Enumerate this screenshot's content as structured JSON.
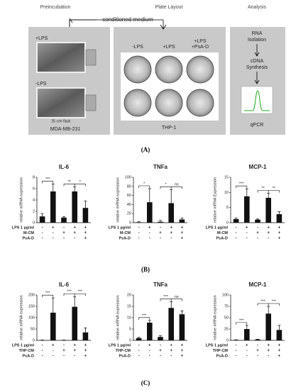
{
  "panel_a": {
    "label": "(A)",
    "headers": [
      "Preincubation",
      "Plate Layout",
      "Analysis"
    ],
    "conditioned_medium": "conditioned medium",
    "flasks": [
      "+LPS",
      "-LPS"
    ],
    "flask_note": "25 cm² flask",
    "cell_line_left": "MDA-MB-231",
    "plate_columns": [
      [
        "-LPS"
      ],
      [
        "+LPS"
      ],
      [
        "+LPS",
        "+PsA-D"
      ]
    ],
    "cell_line_mid": "THP-1",
    "analysis_steps": [
      [
        "RNA",
        "Isolation"
      ],
      [
        "cDNA",
        "Synthesis"
      ],
      [
        "qPCR"
      ]
    ]
  },
  "panel_labels": [
    "(B)",
    "(C)"
  ],
  "chart_data": [
    {
      "type": "bar",
      "title": "IL-6",
      "y_label": "relative mRNA expression",
      "values": [
        1.1,
        5.5,
        0.9,
        5.5,
        2.6
      ],
      "errors": [
        0.5,
        1.3,
        0.2,
        0.8,
        1.2
      ],
      "ylim": [
        0,
        8
      ],
      "yticks": [
        0,
        2,
        4,
        6,
        8
      ],
      "color": "#111111",
      "row_labels": [
        "LPS 1 µg/ml",
        "M-CM",
        "PsA-D"
      ],
      "conditions": [
        [
          "-",
          "+",
          "-",
          "+",
          "+"
        ],
        [
          "-",
          "-",
          "+",
          "+",
          "+"
        ],
        [
          "-",
          "-",
          "-",
          "-",
          "+"
        ]
      ],
      "significance": [
        "***",
        "**",
        "*"
      ]
    },
    {
      "type": "bar",
      "title": "TNFa",
      "y_label": "relative mRNA expression",
      "values": [
        1,
        45,
        2,
        43,
        7
      ],
      "errors": [
        1,
        30,
        3,
        30,
        3
      ],
      "ylim": [
        0,
        100
      ],
      "yticks": [
        0,
        20,
        40,
        60,
        80,
        100
      ],
      "color": "#111111",
      "row_labels": [
        "LPS 1 µg/ml",
        "M-CM",
        "PsA-D"
      ],
      "conditions": [
        [
          "-",
          "+",
          "-",
          "+",
          "+"
        ],
        [
          "-",
          "-",
          "+",
          "+",
          "+"
        ],
        [
          "-",
          "-",
          "-",
          "-",
          "+"
        ]
      ],
      "significance": [
        "*",
        "*",
        "ns"
      ]
    },
    {
      "type": "bar",
      "title": "MCP-1",
      "y_label": "relative mRNA Expression",
      "values": [
        1.2,
        8.7,
        1,
        8.2,
        2.8
      ],
      "errors": [
        0.4,
        2.5,
        0.2,
        1.5,
        0.8
      ],
      "ylim": [
        0,
        15
      ],
      "yticks": [
        0,
        5,
        10,
        15
      ],
      "color": "#111111",
      "row_labels": [
        "LPS 1 µg/ml",
        "M-CM",
        "PsA-D"
      ],
      "conditions": [
        [
          "-",
          "+",
          "-",
          "+",
          "+"
        ],
        [
          "-",
          "-",
          "+",
          "+",
          "+"
        ],
        [
          "-",
          "-",
          "-",
          "-",
          "+"
        ]
      ],
      "significance": [
        "***",
        "**",
        "**"
      ]
    },
    {
      "type": "bar",
      "title": "IL-6",
      "y_label": "relative mRNA expression",
      "values": [
        1,
        122,
        1,
        148,
        35
      ],
      "errors": [
        0.5,
        65,
        0.5,
        45,
        20
      ],
      "ylim": [
        0,
        200
      ],
      "yticks": [
        0,
        50,
        100,
        150,
        200
      ],
      "color": "#111111",
      "row_labels": [
        "LPS 1 µg/ml",
        "THP-CM",
        "PsA-D"
      ],
      "conditions": [
        [
          "-",
          "+",
          "-",
          "+",
          "+"
        ],
        [
          "-",
          "-",
          "+",
          "+",
          "+"
        ],
        [
          "-",
          "-",
          "-",
          "-",
          "+"
        ]
      ],
      "significance": [
        "***",
        "***",
        "***"
      ]
    },
    {
      "type": "bar",
      "title": "TNFa",
      "y_label": "relative mRNA expression",
      "values": [
        1,
        7.8,
        1.5,
        14.3,
        11.5
      ],
      "errors": [
        0.3,
        1,
        0.5,
        2.7,
        1.5
      ],
      "ylim": [
        0,
        20
      ],
      "yticks": [
        0,
        5,
        10,
        15,
        20
      ],
      "color": "#111111",
      "row_labels": [
        "LPS 1 µg/ml",
        "THP-CM",
        "PsA-D"
      ],
      "conditions": [
        [
          "-",
          "+",
          "-",
          "+",
          "+"
        ],
        [
          "-",
          "-",
          "+",
          "+",
          "+"
        ],
        [
          "-",
          "-",
          "-",
          "-",
          "+"
        ]
      ],
      "significance": [
        "***",
        "***",
        "ns"
      ]
    },
    {
      "type": "bar",
      "title": "MCP-1",
      "y_label": "relative mRNA expression",
      "values": [
        1,
        25,
        2,
        59,
        23
      ],
      "errors": [
        0.5,
        8,
        0.5,
        16,
        10
      ],
      "ylim": [
        0,
        100
      ],
      "yticks": [
        0,
        25,
        50,
        75,
        100
      ],
      "color": "#111111",
      "row_labels": [
        "LPS 1 µg/ml",
        "THP-CM",
        "PsA-D"
      ],
      "conditions": [
        [
          "-",
          "+",
          "-",
          "+",
          "+"
        ],
        [
          "-",
          "-",
          "+",
          "+",
          "+"
        ],
        [
          "-",
          "-",
          "-",
          "-",
          "+"
        ]
      ],
      "significance": [
        "***",
        "***",
        "***"
      ]
    }
  ]
}
